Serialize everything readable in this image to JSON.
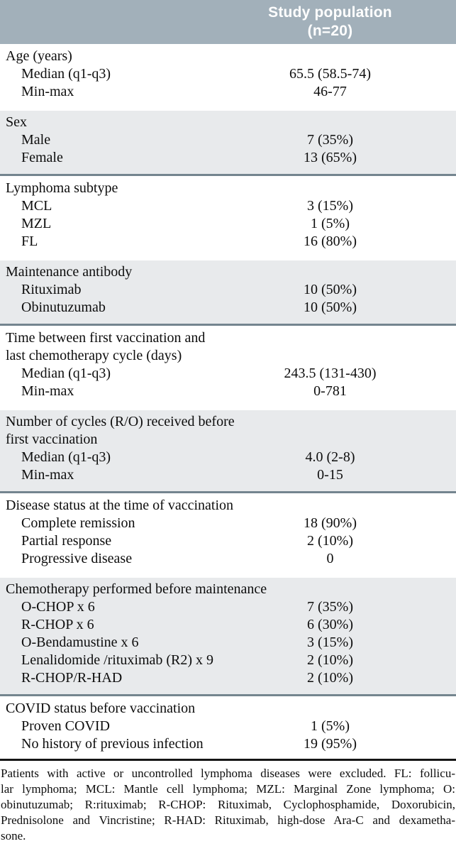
{
  "header": {
    "value_column_label": "Study population\n(n=20)"
  },
  "sections": [
    {
      "shaded": false,
      "title": "Age (years)",
      "rows": [
        {
          "label": "Median (q1-q3)",
          "value": "65.5 (58.5-74)"
        },
        {
          "label": "Min-max",
          "value": "46-77"
        }
      ]
    },
    {
      "shaded": true,
      "title": "Sex",
      "rows": [
        {
          "label": "Male",
          "value": "7 (35%)"
        },
        {
          "label": "Female",
          "value": "13 (65%)"
        }
      ]
    },
    {
      "shaded": false,
      "title": "Lymphoma subtype",
      "rows": [
        {
          "label": "MCL",
          "value": "3 (15%)"
        },
        {
          "label": "MZL",
          "value": "1 (5%)"
        },
        {
          "label": "FL",
          "value": "16 (80%)"
        }
      ]
    },
    {
      "shaded": true,
      "title": "Maintenance antibody",
      "rows": [
        {
          "label": "Rituximab",
          "value": "10 (50%)"
        },
        {
          "label": "Obinutuzumab",
          "value": "10 (50%)"
        }
      ]
    },
    {
      "shaded": false,
      "title": "Time between first vaccination and\nlast chemotherapy cycle (days)",
      "rows": [
        {
          "label": "Median (q1-q3)",
          "value": "243.5 (131-430)"
        },
        {
          "label": "Min-max",
          "value": "0-781"
        }
      ]
    },
    {
      "shaded": true,
      "title": "Number of cycles (R/O) received before\nfirst vaccination",
      "rows": [
        {
          "label": "Median (q1-q3)",
          "value": "4.0 (2-8)"
        },
        {
          "label": "Min-max",
          "value": "0-15"
        }
      ]
    },
    {
      "shaded": false,
      "title": "Disease status at the time of vaccination",
      "rows": [
        {
          "label": "Complete remission",
          "value": "18 (90%)"
        },
        {
          "label": "Partial response",
          "value": "2 (10%)"
        },
        {
          "label": "Progressive disease",
          "value": "0"
        }
      ]
    },
    {
      "shaded": true,
      "title": "Chemotherapy performed before maintenance",
      "rows": [
        {
          "label": "O-CHOP x 6",
          "value": "7 (35%)"
        },
        {
          "label": "R-CHOP x 6",
          "value": "6 (30%)"
        },
        {
          "label": "O-Bendamustine x 6",
          "value": "3 (15%)"
        },
        {
          "label": "Lenalidomide /rituximab (R2) x 9",
          "value": "2 (10%)"
        },
        {
          "label": "R-CHOP/R-HAD",
          "value": "2 (10%)"
        }
      ]
    },
    {
      "shaded": false,
      "black_rule": true,
      "title": "COVID status before vaccination",
      "rows": [
        {
          "label": "Proven COVID",
          "value": "1 (5%)"
        },
        {
          "label": "No history of previous infection",
          "value": "19 (95%)"
        }
      ]
    }
  ],
  "footnote": {
    "lines": [
      "Patients with active or uncontrolled lymphoma diseases were excluded. FL: follicu-",
      "lar lymphoma; MCL: Mantle cell lymphoma; MZL: Marginal Zone lymphoma; O:",
      "obinutuzumab; R:rituximab; R-CHOP: Rituximab, Cyclophosphamide, Doxorubicin,",
      "Prednisolone and Vincristine; R-HAD: Rituximab, high-dose Ara-C and dexametha-",
      "sone."
    ]
  },
  "colors": {
    "header_band": "#a2b0ba",
    "shaded_section": "#e8eaec",
    "section_rule": "#74858f",
    "bottom_rule": "#161616",
    "header_text": "#ffffff",
    "body_text": "#0d0d0d"
  }
}
